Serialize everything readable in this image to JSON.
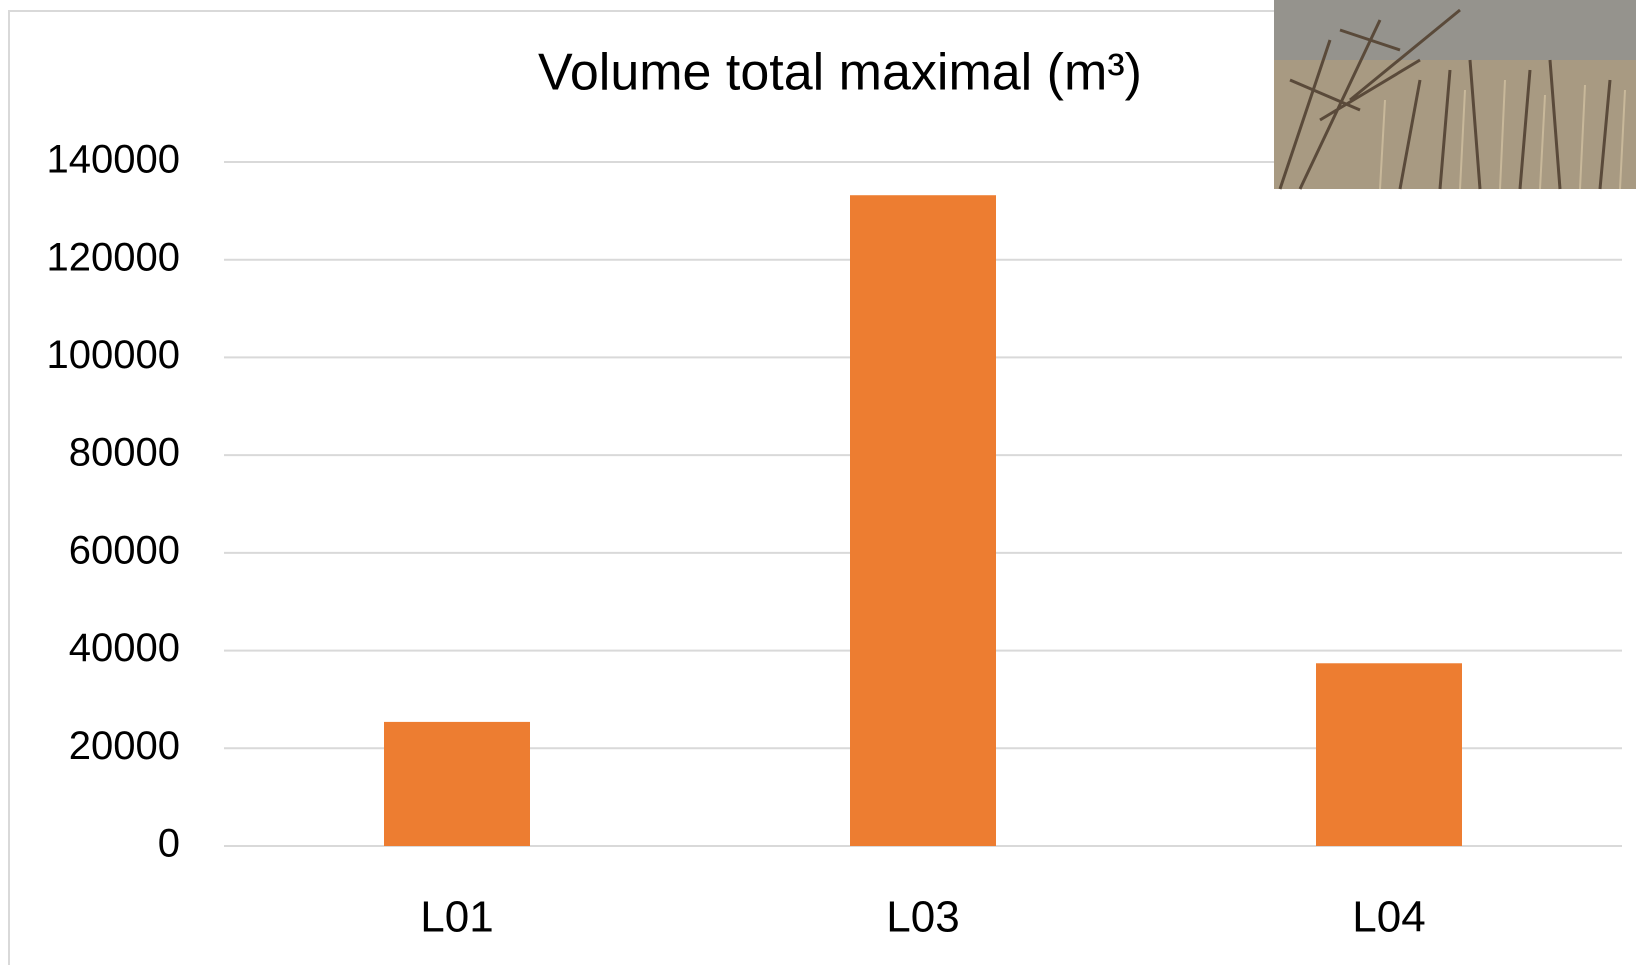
{
  "chart_data": {
    "type": "bar",
    "title": "Volume total maximal (m³)",
    "categories": [
      "L01",
      "L03",
      "L04"
    ],
    "values": [
      25400,
      133200,
      37400
    ],
    "color": "#ed7d31",
    "ylim": [
      0,
      140000
    ],
    "yticks": [
      0,
      20000,
      40000,
      60000,
      80000,
      100000,
      120000,
      140000
    ],
    "grid": true
  }
}
